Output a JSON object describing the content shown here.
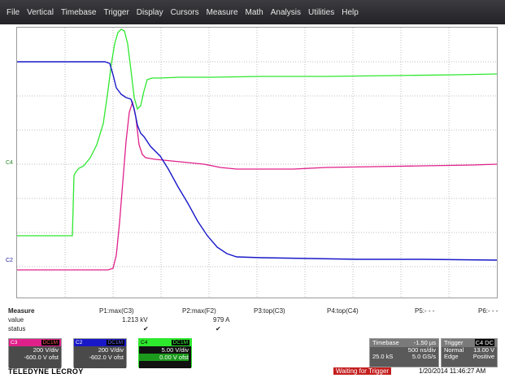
{
  "menu": [
    "File",
    "Vertical",
    "Timebase",
    "Trigger",
    "Display",
    "Cursors",
    "Measure",
    "Math",
    "Analysis",
    "Utilities",
    "Help"
  ],
  "channel_markers": {
    "c4": "C4",
    "c2": "C2"
  },
  "measure": {
    "headers": [
      "Measure",
      "P1:max(C3)",
      "P2:max(F2)",
      "P3:top(C3)",
      "P4:top(C4)",
      "P5:- - -",
      "P6:- - -"
    ],
    "value_label": "value",
    "values": [
      "1.213 kV",
      "979 A"
    ],
    "status_label": "status",
    "status": [
      "✔",
      "✔"
    ]
  },
  "channels": [
    {
      "id": "C3",
      "coupling": "DC1M",
      "vdiv": "200 V/div",
      "offset": "-600.0 V ofst",
      "color": "#d6287a"
    },
    {
      "id": "C2",
      "coupling": "DC1M",
      "vdiv": "200 V/div",
      "offset": "-602.0 V ofst",
      "color": "#2222cc"
    },
    {
      "id": "C4",
      "coupling": "DC1M",
      "vdiv": "5.00 V/div",
      "offset": "0.00 V ofst",
      "color": "#22cc22"
    }
  ],
  "timebase": {
    "label": "Timebase",
    "delay": "-1.50 µs",
    "tdiv": "500 ns/div",
    "samples": "25.0 kS",
    "rate": "5.0 GS/s"
  },
  "trigger": {
    "label": "Trigger",
    "channel": "C4",
    "coupling": "DC",
    "mode": "Normal",
    "level": "13.00 V",
    "type": "Edge",
    "slope": "Positive"
  },
  "footer": {
    "brand": "TELEDYNE LECROY",
    "status": "Waiting for Trigger",
    "datetime": "1/20/2014 11:46:27 AM"
  },
  "colors": {
    "c2": "#1818c8",
    "c3": "#e0208a",
    "c4": "#2ee82e"
  }
}
